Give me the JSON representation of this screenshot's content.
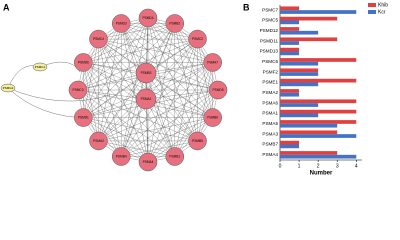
{
  "panels": [
    "A",
    "B"
  ],
  "network": {
    "ring": [
      "PSMD4",
      "PSMB2",
      "PSMC2",
      "PSMA7",
      "PSMD8",
      "PSMB6",
      "PSMB5",
      "PSMB1",
      "PSMA4",
      "PSMB4",
      "PSMA2",
      "PSMD1",
      "PSMC3",
      "PSMD6",
      "PSMC4",
      "PSMD3"
    ],
    "center": [
      "PSMB3",
      "PSMA1"
    ],
    "outer": [
      "PSMG1",
      "PSMG2"
    ]
  },
  "chart_data": {
    "type": "hbar",
    "categories": [
      "PSMC7",
      "PSMC5",
      "PSMD12",
      "PSMD11",
      "PSMD13",
      "PSMC6",
      "PSMF2",
      "PSME1",
      "PSMA2",
      "PSMA6",
      "PSMA1",
      "PSMA5",
      "PSMA3",
      "PSMB7",
      "PSMA4"
    ],
    "series": [
      {
        "name": "Khib",
        "color": "#e0403f",
        "values": [
          1,
          3,
          1,
          3,
          1,
          4,
          2,
          4,
          1,
          4,
          4,
          4,
          3,
          1,
          3
        ]
      },
      {
        "name": "Kcr",
        "color": "#4472c4",
        "values": [
          4,
          1,
          2,
          1,
          1,
          2,
          2,
          2,
          1,
          2,
          2,
          3,
          4,
          1,
          4
        ]
      }
    ],
    "x_label": "Number",
    "xlim": [
      0,
      4.3
    ],
    "xticks": [
      0,
      1,
      2,
      3,
      4
    ],
    "legend": "top-right"
  }
}
